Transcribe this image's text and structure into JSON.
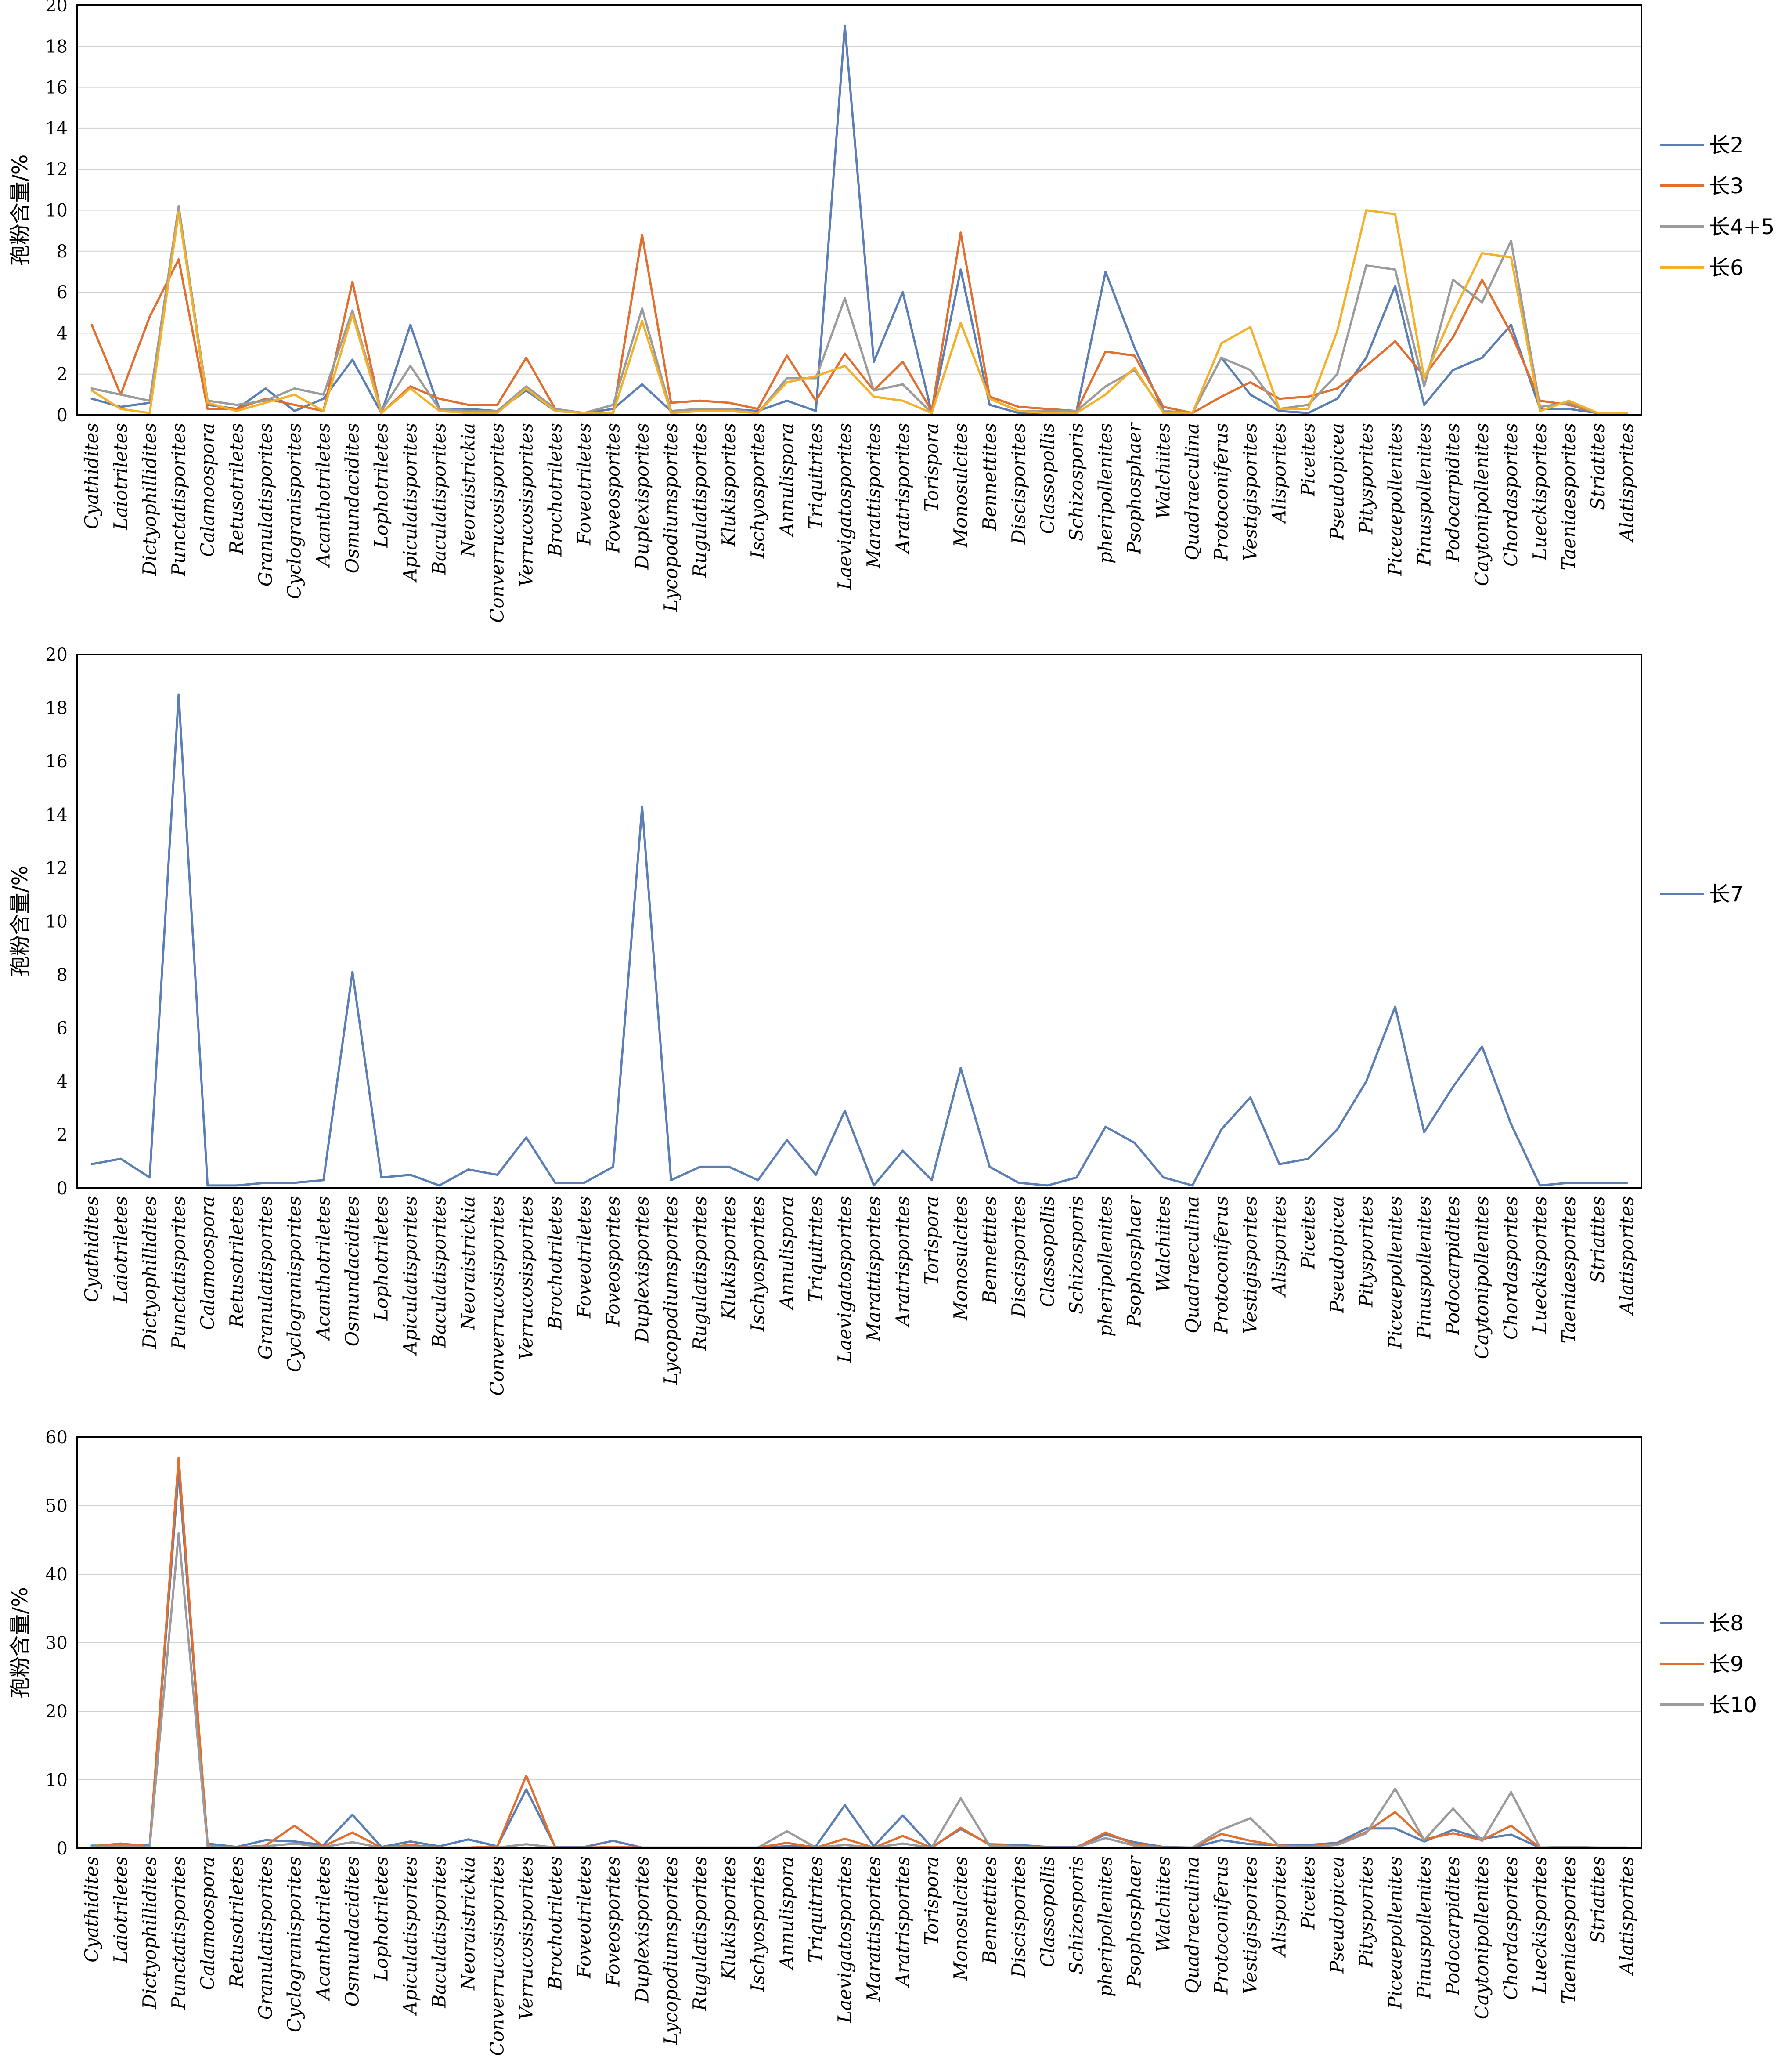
{
  "chart_data": [
    {
      "type": "line",
      "ylabel": "孢粉含量/%",
      "ylim": [
        0,
        20
      ],
      "yticks": [
        0,
        2,
        4,
        6,
        8,
        10,
        12,
        14,
        16,
        18,
        20
      ],
      "grid": true,
      "legend_position": "right",
      "categories": [
        "Cyathidites",
        "Laiotriletes",
        "Dictyophillidites",
        "Punctatisporites",
        "Calamoospora",
        "Retusotriletes",
        "Granulatisporites",
        "Cyclogranisporites",
        "Acanthotriletes",
        "Osmundacidites",
        "Lophotriletes",
        "Apiculatisporites",
        "Baculatisporites",
        "Neoraistrickia",
        "Converrucosisporites",
        "Verrucosisporites",
        "Brochotriletes",
        "Foveotriletes",
        "Foveosporites",
        "Duplexisporites",
        "Lycopodiumsporites",
        "Rugulatisporites",
        "Klukisporites",
        "Ischyosporites",
        "Annulispora",
        "Triquitrites",
        "Laevigatosporites",
        "Marattisporites",
        "Aratrisporites",
        "Torispora",
        "Monosulcites",
        "Bennettites",
        "Discisporites",
        "Classopollis",
        "Schizosporis",
        "pheripollenites",
        "Psophosphaer",
        "Walchiites",
        "Quadraeculina",
        "Protoconiferus",
        "Vestigisporites",
        "Alisporites",
        "Piceites",
        "Pseudopicea",
        "Pitysporites",
        "Piceaepollenites",
        "Pinuspollenites",
        "Podocarpidites",
        "Caytonipollenites",
        "Chordasporites",
        "Lueckisporites",
        "Taeniaesporites",
        "Striatites",
        "Alatisporites"
      ],
      "series": [
        {
          "name": "长2",
          "color": "#5b7fb4",
          "values": [
            0.8,
            0.4,
            0.6,
            10,
            0.5,
            0.3,
            1.3,
            0.2,
            0.8,
            2.7,
            0.1,
            4.4,
            0.3,
            0.3,
            0.2,
            1.2,
            0.2,
            0.1,
            0.3,
            1.5,
            0.2,
            0.3,
            0.3,
            0.2,
            0.7,
            0.2,
            19,
            2.6,
            6,
            0.1,
            7.1,
            0.5,
            0.1,
            0.1,
            0.2,
            7,
            3.3,
            0.2,
            0.1,
            2.8,
            1,
            0.2,
            0.1,
            0.8,
            2.8,
            6.3,
            0.5,
            2.2,
            2.8,
            4.4,
            0.3,
            0.3,
            0.1,
            0.1
          ]
        },
        {
          "name": "长3",
          "color": "#e16f30",
          "values": [
            4.4,
            1,
            4.8,
            7.6,
            0.3,
            0.3,
            0.8,
            0.5,
            0.2,
            6.5,
            0.1,
            1.4,
            0.8,
            0.5,
            0.5,
            2.8,
            0.3,
            0.1,
            0.1,
            8.8,
            0.6,
            0.7,
            0.6,
            0.3,
            2.9,
            0.7,
            3,
            1.2,
            2.6,
            0.2,
            8.9,
            0.9,
            0.4,
            0.3,
            0.2,
            3.1,
            2.9,
            0.4,
            0.1,
            0.9,
            1.6,
            0.8,
            0.9,
            1.3,
            2.4,
            3.6,
            1.9,
            3.8,
            6.6,
            4,
            0.7,
            0.5,
            0.1,
            0.1
          ]
        },
        {
          "name": "长4+5",
          "color": "#9b9b9b",
          "values": [
            1.3,
            1,
            0.7,
            10.2,
            0.7,
            0.5,
            0.7,
            1.3,
            1,
            5.1,
            0.2,
            2.4,
            0.3,
            0.2,
            0.2,
            1.4,
            0.3,
            0.1,
            0.5,
            5.2,
            0.2,
            0.3,
            0.3,
            0.1,
            1.8,
            1.8,
            5.7,
            1.2,
            1.5,
            0.1,
            4.5,
            0.8,
            0.2,
            0.2,
            0.2,
            1.4,
            2.2,
            0.2,
            0.1,
            2.8,
            2.2,
            0.3,
            0.5,
            2,
            7.3,
            7.1,
            1.4,
            6.6,
            5.5,
            8.5,
            0.4,
            0.6,
            0.1,
            0.1
          ]
        },
        {
          "name": "长6",
          "color": "#f3b02a",
          "values": [
            1.2,
            0.3,
            0.1,
            9.9,
            0.6,
            0.2,
            0.6,
            1,
            0.2,
            4.9,
            0.1,
            1.3,
            0.2,
            0.1,
            0.1,
            1.3,
            0.2,
            0.1,
            0.1,
            4.6,
            0.1,
            0.2,
            0.2,
            0.1,
            1.6,
            1.9,
            2.4,
            0.9,
            0.7,
            0.1,
            4.5,
            0.8,
            0.2,
            0.1,
            0.1,
            1,
            2.3,
            0.1,
            0.1,
            3.5,
            4.3,
            0.3,
            0.3,
            4.1,
            10,
            9.8,
            1.8,
            5,
            7.9,
            7.7,
            0.2,
            0.7,
            0.1,
            0.1
          ]
        }
      ]
    },
    {
      "type": "line",
      "ylabel": "孢粉含量/%",
      "ylim": [
        0,
        20
      ],
      "yticks": [
        0,
        2,
        4,
        6,
        8,
        10,
        12,
        14,
        16,
        18,
        20
      ],
      "grid": false,
      "legend_position": "right",
      "categories": [
        "Cyathidites",
        "Laiotriletes",
        "Dictyophillidites",
        "Punctatisporites",
        "Calamoospora",
        "Retusotriletes",
        "Granulatisporites",
        "Cyclogranisporites",
        "Acanthotriletes",
        "Osmundacidites",
        "Lophotriletes",
        "Apiculatisporites",
        "Baculatisporites",
        "Neoraistrickia",
        "Converrucosisporites",
        "Verrucosisporites",
        "Brochotriletes",
        "Foveotriletes",
        "Foveosporites",
        "Duplexisporites",
        "Lycopodiumsporites",
        "Rugulatisporites",
        "Klukisporites",
        "Ischyosporites",
        "Annulispora",
        "Triquitrites",
        "Laevigatosporites",
        "Marattisporites",
        "Aratrisporites",
        "Torispora",
        "Monosulcites",
        "Bennettites",
        "Discisporites",
        "Classopollis",
        "Schizosporis",
        "pheripollenites",
        "Psophosphaer",
        "Walchiites",
        "Quadraeculina",
        "Protoconiferus",
        "Vestigisporites",
        "Alisporites",
        "Piceites",
        "Pseudopicea",
        "Pitysporites",
        "Piceaepollenites",
        "Pinuspollenites",
        "Podocarpidites",
        "Caytonipollenites",
        "Chordasporites",
        "Lueckisporites",
        "Taeniaesporites",
        "Striatites",
        "Alatisporites"
      ],
      "series": [
        {
          "name": "长7",
          "color": "#5b7fb4",
          "values": [
            0.9,
            1.1,
            0.4,
            18.5,
            0.1,
            0.1,
            0.2,
            0.2,
            0.3,
            8.1,
            0.4,
            0.5,
            0.1,
            0.7,
            0.5,
            1.9,
            0.2,
            0.2,
            0.8,
            14.3,
            0.3,
            0.8,
            0.8,
            0.3,
            1.8,
            0.5,
            2.9,
            0.1,
            1.4,
            0.3,
            4.5,
            0.8,
            0.2,
            0.1,
            0.4,
            2.3,
            1.7,
            0.4,
            0.1,
            2.2,
            3.4,
            0.9,
            1.1,
            2.2,
            4,
            6.8,
            2.1,
            3.8,
            5.3,
            2.4,
            0.1,
            0.2,
            0.2,
            0.2
          ]
        }
      ]
    },
    {
      "type": "line",
      "ylabel": "孢粉含量/%",
      "ylim": [
        0,
        60
      ],
      "yticks": [
        0,
        10,
        20,
        30,
        40,
        50,
        60
      ],
      "grid": true,
      "legend_position": "right",
      "categories": [
        "Cyathidites",
        "Laiotriletes",
        "Dictyophillidites",
        "Punctatisporites",
        "Calamoospora",
        "Retusotriletes",
        "Granulatisporites",
        "Cyclogranisporites",
        "Acanthotriletes",
        "Osmundacidites",
        "Lophotriletes",
        "Apiculatisporites",
        "Baculatisporites",
        "Neoraistrickia",
        "Converrucosisporites",
        "Verrucosisporites",
        "Brochotriletes",
        "Foveotriletes",
        "Foveosporites",
        "Duplexisporites",
        "Lycopodiumsporites",
        "Rugulatisporites",
        "Klukisporites",
        "Ischyosporites",
        "Annulispora",
        "Triquitrites",
        "Laevigatosporites",
        "Marattisporites",
        "Aratrisporites",
        "Torispora",
        "Monosulcites",
        "Bennettites",
        "Discisporites",
        "Classopollis",
        "Schizosporis",
        "pheripollenites",
        "Psophosphaer",
        "Walchiites",
        "Quadraeculina",
        "Protoconiferus",
        "Vestigisporites",
        "Alisporites",
        "Piceites",
        "Pseudopicea",
        "Pitysporites",
        "Piceaepollenites",
        "Pinuspollenites",
        "Podocarpidites",
        "Caytonipollenites",
        "Chordasporites",
        "Lueckisporites",
        "Taeniaesporites",
        "Striatites",
        "Alatisporites"
      ],
      "series": [
        {
          "name": "长8",
          "color": "#5b7fb4",
          "values": [
            0.4,
            0.4,
            0.5,
            55,
            0.7,
            0.2,
            1.2,
            1,
            0.5,
            4.9,
            0.2,
            1,
            0.3,
            1.3,
            0.3,
            8.6,
            0.2,
            0.2,
            1.1,
            0.1,
            0.1,
            0.1,
            0.1,
            0.1,
            0.3,
            0.3,
            6.3,
            0.3,
            4.8,
            0.2,
            2.8,
            0.6,
            0.5,
            0.2,
            0.2,
            2,
            0.9,
            0.2,
            0.1,
            1.2,
            0.6,
            0.5,
            0.5,
            0.8,
            2.9,
            2.9,
            1,
            2.7,
            1.4,
            2,
            0.1,
            0.2,
            0.1,
            0.1
          ]
        },
        {
          "name": "长9",
          "color": "#e16f30",
          "values": [
            0.3,
            0.7,
            0.3,
            57,
            0.4,
            0.1,
            0.4,
            3.3,
            0.3,
            2.3,
            0.1,
            0.5,
            0.1,
            0.1,
            0.3,
            10.6,
            0.1,
            0.1,
            0.2,
            0.1,
            0.1,
            0.1,
            0.1,
            0.1,
            0.8,
            0.1,
            1.4,
            0.1,
            1.8,
            0.1,
            3,
            0.5,
            0.3,
            0.1,
            0.1,
            2.3,
            0.6,
            0.1,
            0.1,
            2.1,
            1.1,
            0.4,
            0.3,
            0.6,
            2.4,
            5.3,
            1.3,
            2.2,
            1.2,
            3.3,
            0.1,
            0.2,
            0.1,
            0.1
          ]
        },
        {
          "name": "长10",
          "color": "#9b9b9b",
          "values": [
            0.2,
            0.3,
            0.2,
            46,
            0.3,
            0.1,
            0.3,
            0.7,
            0.2,
            0.9,
            0.1,
            0.3,
            0.1,
            0.1,
            0.1,
            0.6,
            0.1,
            0.1,
            0.1,
            0.1,
            0.1,
            0.1,
            0.1,
            0.1,
            2.5,
            0.1,
            0.5,
            0.1,
            0.7,
            0.1,
            7.3,
            0.4,
            0.2,
            0.1,
            0.1,
            1.5,
            0.4,
            0.1,
            0.1,
            2.7,
            4.4,
            0.3,
            0.2,
            0.5,
            2.2,
            8.7,
            1.2,
            5.8,
            1.1,
            8.2,
            0.1,
            0.2,
            0.1,
            0.1
          ]
        }
      ]
    }
  ]
}
